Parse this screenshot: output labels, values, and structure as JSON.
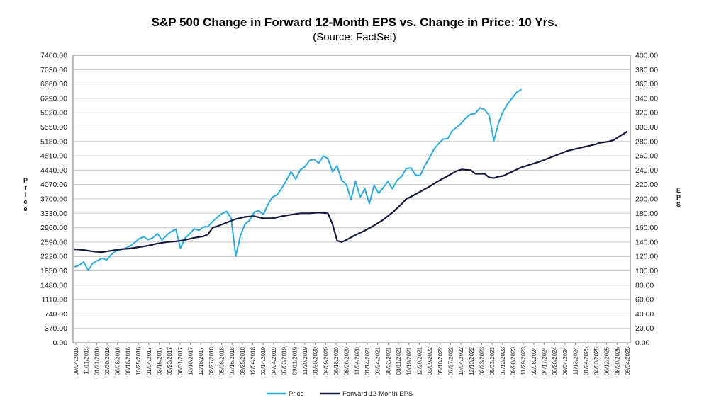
{
  "title": "S&P 500 Change in Forward 12-Month EPS vs. Change in Price: 10 Yrs.",
  "subtitle": "(Source: FactSet)",
  "colors": {
    "price": "#29ABE2",
    "eps": "#14193D",
    "grid": "#c8c8c8",
    "axis": "#808080"
  },
  "chart_data": {
    "type": "line",
    "title": "S&P 500 Change in Forward 12-Month EPS vs. Change in Price: 10 Yrs.",
    "subtitle": "(Source: FactSet)",
    "ylabel_left": "Price",
    "ylabel_right": "EPS",
    "ylim_left": [
      0,
      7400
    ],
    "ylim_right": [
      0,
      400
    ],
    "yticks_left": [
      "0.00",
      "370.00",
      "740.00",
      "1110.00",
      "1480.00",
      "1850.00",
      "2220.00",
      "2590.00",
      "2960.00",
      "3330.00",
      "3700.00",
      "4070.00",
      "4440.00",
      "4810.00",
      "5180.00",
      "5550.00",
      "5920.00",
      "6290.00",
      "6660.00",
      "7030.00",
      "7400.00"
    ],
    "yticks_right": [
      "0.00",
      "20.00",
      "40.00",
      "60.00",
      "80.00",
      "100.00",
      "120.00",
      "140.00",
      "160.00",
      "180.00",
      "200.00",
      "220.00",
      "240.00",
      "260.00",
      "280.00",
      "300.00",
      "320.00",
      "340.00",
      "360.00",
      "380.00",
      "400.00"
    ],
    "xticks": [
      "09/04/2015",
      "11/11/2015",
      "01/21/2016",
      "03/30/2016",
      "06/08/2016",
      "08/16/2016",
      "10/25/2016",
      "01/04/2017",
      "03/15/2017",
      "05/23/2017",
      "08/01/2017",
      "10/10/2017",
      "12/18/2017",
      "02/27/2018",
      "05/08/2018",
      "07/16/2018",
      "09/25/2018",
      "12/04/2018",
      "02/14/2019",
      "04/24/2019",
      "07/03/2019",
      "09/11/2019",
      "11/20/2019",
      "01/30/2020",
      "04/09/2020",
      "06/18/2020",
      "08/26/2020",
      "11/04/2020",
      "01/14/2021",
      "03/24/2021",
      "06/02/2021",
      "08/11/2021",
      "10/19/2021",
      "12/29/2021",
      "03/09/2022",
      "05/18/2022",
      "07/27/2022",
      "10/04/2022",
      "12/13/2022",
      "02/23/2023",
      "05/03/2023",
      "07/12/2023",
      "09/20/2023",
      "11/29/2023",
      "02/08/2024",
      "04/17/2024",
      "06/26/2024",
      "09/04/2024",
      "11/13/2024",
      "01/24/2025",
      "04/03/2025",
      "06/12/2025",
      "08/20/2025",
      "09/04/2025"
    ],
    "grid": true,
    "legend_position": "bottom-center",
    "series": [
      {
        "name": "Price",
        "axis": "left",
        "points": [
          [
            0,
            1950
          ],
          [
            1,
            1990
          ],
          [
            2,
            2080
          ],
          [
            3,
            1860
          ],
          [
            4,
            2050
          ],
          [
            5,
            2110
          ],
          [
            6,
            2170
          ],
          [
            7,
            2130
          ],
          [
            8,
            2270
          ],
          [
            9,
            2360
          ],
          [
            10,
            2390
          ],
          [
            11,
            2430
          ],
          [
            12,
            2480
          ],
          [
            13,
            2570
          ],
          [
            14,
            2670
          ],
          [
            15,
            2730
          ],
          [
            16,
            2650
          ],
          [
            17,
            2700
          ],
          [
            18,
            2810
          ],
          [
            19,
            2640
          ],
          [
            20,
            2770
          ],
          [
            21,
            2860
          ],
          [
            22,
            2920
          ],
          [
            23,
            2430
          ],
          [
            24,
            2690
          ],
          [
            25,
            2800
          ],
          [
            26,
            2930
          ],
          [
            27,
            2890
          ],
          [
            28,
            2980
          ],
          [
            29,
            2990
          ],
          [
            30,
            3120
          ],
          [
            31,
            3230
          ],
          [
            32,
            3320
          ],
          [
            33,
            3380
          ],
          [
            34,
            3200
          ],
          [
            35,
            2230
          ],
          [
            36,
            2750
          ],
          [
            37,
            3050
          ],
          [
            38,
            3150
          ],
          [
            39,
            3360
          ],
          [
            40,
            3400
          ],
          [
            41,
            3300
          ],
          [
            42,
            3560
          ],
          [
            43,
            3750
          ],
          [
            44,
            3810
          ],
          [
            45,
            3980
          ],
          [
            46,
            4180
          ],
          [
            47,
            4400
          ],
          [
            48,
            4210
          ],
          [
            49,
            4450
          ],
          [
            50,
            4530
          ],
          [
            51,
            4690
          ],
          [
            52,
            4720
          ],
          [
            53,
            4620
          ],
          [
            54,
            4800
          ],
          [
            55,
            4740
          ],
          [
            56,
            4400
          ],
          [
            57,
            4550
          ],
          [
            58,
            4180
          ],
          [
            59,
            4070
          ],
          [
            60,
            3680
          ],
          [
            61,
            4150
          ],
          [
            62,
            3750
          ],
          [
            63,
            3960
          ],
          [
            64,
            3580
          ],
          [
            65,
            4050
          ],
          [
            66,
            3850
          ],
          [
            67,
            3990
          ],
          [
            68,
            4150
          ],
          [
            69,
            3960
          ],
          [
            70,
            4180
          ],
          [
            71,
            4280
          ],
          [
            72,
            4480
          ],
          [
            73,
            4500
          ],
          [
            74,
            4320
          ],
          [
            75,
            4300
          ],
          [
            76,
            4550
          ],
          [
            77,
            4750
          ],
          [
            78,
            4980
          ],
          [
            79,
            5120
          ],
          [
            80,
            5240
          ],
          [
            81,
            5250
          ],
          [
            82,
            5460
          ],
          [
            83,
            5550
          ],
          [
            84,
            5650
          ],
          [
            85,
            5800
          ],
          [
            86,
            5880
          ],
          [
            87,
            5900
          ],
          [
            88,
            6050
          ],
          [
            89,
            6000
          ],
          [
            90,
            5850
          ],
          [
            91,
            5200
          ],
          [
            92,
            5650
          ],
          [
            93,
            5950
          ],
          [
            94,
            6150
          ],
          [
            95,
            6300
          ],
          [
            96,
            6450
          ],
          [
            97,
            6520
          ]
        ]
      },
      {
        "name": "Forward 12-Month EPS",
        "axis": "right",
        "points": [
          [
            0,
            130
          ],
          [
            2,
            129
          ],
          [
            4,
            127
          ],
          [
            6,
            126
          ],
          [
            8,
            128
          ],
          [
            10,
            130
          ],
          [
            12,
            131
          ],
          [
            14,
            133
          ],
          [
            16,
            135
          ],
          [
            18,
            138
          ],
          [
            20,
            140
          ],
          [
            22,
            141
          ],
          [
            24,
            143
          ],
          [
            26,
            146
          ],
          [
            28,
            148
          ],
          [
            29,
            151
          ],
          [
            30,
            160
          ],
          [
            31,
            162
          ],
          [
            33,
            167
          ],
          [
            35,
            172
          ],
          [
            37,
            175
          ],
          [
            39,
            176
          ],
          [
            41,
            173
          ],
          [
            43,
            173
          ],
          [
            45,
            176
          ],
          [
            47,
            178
          ],
          [
            49,
            180
          ],
          [
            51,
            180
          ],
          [
            53,
            181
          ],
          [
            55,
            180
          ],
          [
            56,
            165
          ],
          [
            57,
            142
          ],
          [
            58,
            140
          ],
          [
            59,
            143
          ],
          [
            61,
            150
          ],
          [
            63,
            156
          ],
          [
            65,
            163
          ],
          [
            67,
            171
          ],
          [
            69,
            181
          ],
          [
            71,
            193
          ],
          [
            72,
            200
          ],
          [
            73,
            203
          ],
          [
            75,
            210
          ],
          [
            77,
            217
          ],
          [
            79,
            225
          ],
          [
            81,
            232
          ],
          [
            83,
            239
          ],
          [
            84,
            241
          ],
          [
            86,
            240
          ],
          [
            87,
            235
          ],
          [
            89,
            235
          ],
          [
            90,
            230
          ],
          [
            91,
            229
          ],
          [
            92,
            231
          ],
          [
            93,
            232
          ],
          [
            94,
            235
          ],
          [
            95,
            238
          ],
          [
            96,
            241
          ],
          [
            97,
            244
          ],
          [
            99,
            248
          ],
          [
            101,
            252
          ],
          [
            103,
            257
          ],
          [
            105,
            262
          ],
          [
            107,
            267
          ],
          [
            109,
            270
          ],
          [
            111,
            273
          ],
          [
            113,
            276
          ],
          [
            114,
            278
          ],
          [
            115,
            279
          ],
          [
            116,
            280
          ],
          [
            117,
            282
          ],
          [
            118,
            286
          ],
          [
            119,
            290
          ],
          [
            120,
            294
          ]
        ]
      }
    ]
  },
  "legend": {
    "price_label": "Price",
    "eps_label": "Forward 12-Month EPS"
  }
}
